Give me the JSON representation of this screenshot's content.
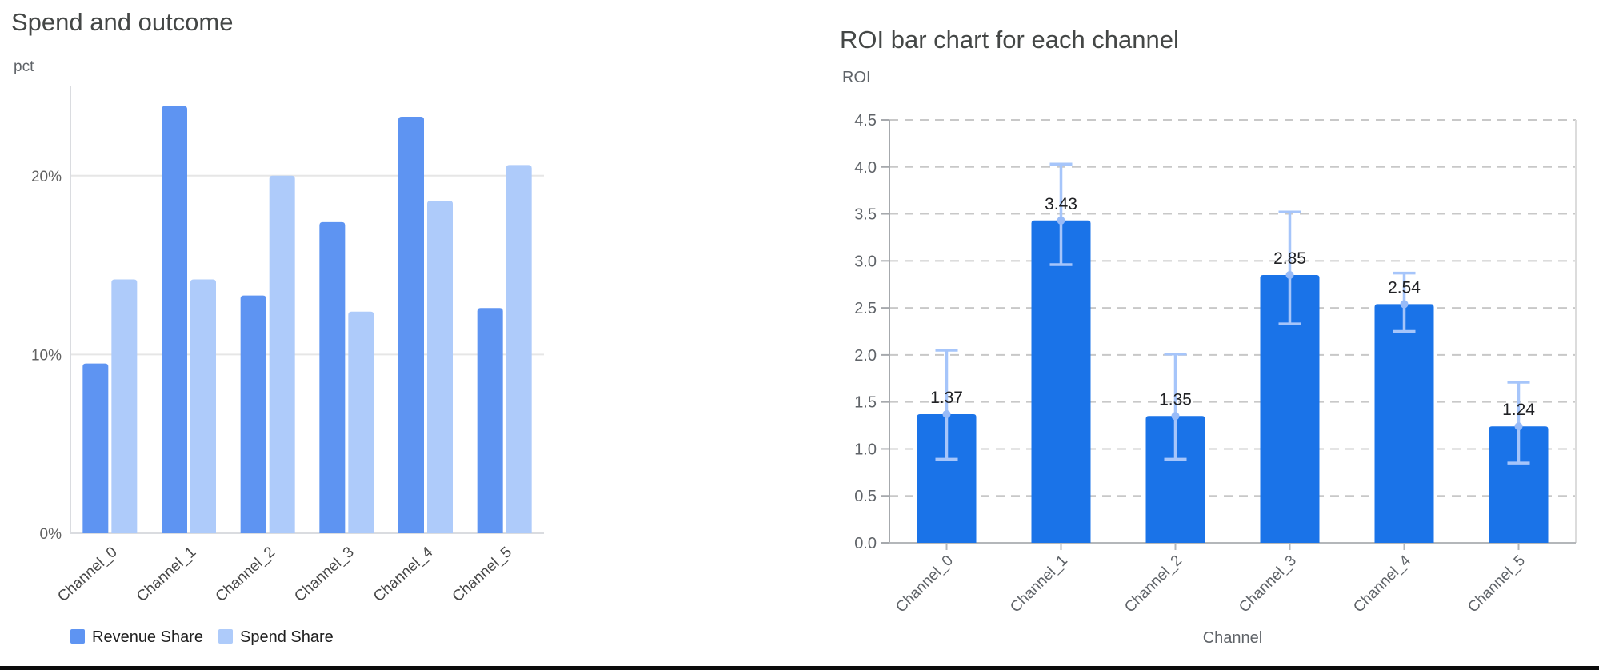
{
  "page": {
    "background": "#ffffff",
    "bottom_rule_color": "#0b0b0b"
  },
  "chart_data": [
    {
      "type": "bar",
      "title": "Spend and outcome",
      "ylabel": "pct",
      "xlabel": "",
      "categories": [
        "Channel_0",
        "Channel_1",
        "Channel_2",
        "Channel_3",
        "Channel_4",
        "Channel_5"
      ],
      "series": [
        {
          "name": "Revenue Share",
          "color": "#5e94f2",
          "values": [
            9.5,
            23.9,
            13.3,
            17.4,
            23.3,
            12.6
          ]
        },
        {
          "name": "Spend Share",
          "color": "#aecbfa",
          "values": [
            14.2,
            14.2,
            20.0,
            12.4,
            18.6,
            20.6
          ]
        }
      ],
      "units": "percent of total (each series sums to 100%)",
      "y_ticks": [
        "0%",
        "10%",
        "20%"
      ],
      "y_tick_values": [
        0,
        10,
        20
      ],
      "ylim": [
        0,
        25
      ],
      "grid": "horizontal solid, light gray",
      "legend_position": "bottom-left",
      "colors": {
        "grid": "#e6e6e6",
        "axis": "#dadce0",
        "title_text": "#444746",
        "tick_text": "#616161",
        "category_text": "#474747",
        "legend_text": "#1f1f1f"
      }
    },
    {
      "type": "bar",
      "title": "ROI bar chart for each channel",
      "ylabel": "ROI",
      "xlabel": "Channel",
      "categories": [
        "Channel_0",
        "Channel_1",
        "Channel_2",
        "Channel_3",
        "Channel_4",
        "Channel_5"
      ],
      "series": [
        {
          "name": "ROI",
          "color": "#1a73e8",
          "values": [
            1.37,
            3.43,
            1.35,
            2.85,
            2.54,
            1.24
          ]
        }
      ],
      "value_labels": [
        "1.37",
        "3.43",
        "1.35",
        "2.85",
        "2.54",
        "1.24"
      ],
      "error_bars": {
        "color": "#a6c5fa",
        "marker_color": "#98bbf8",
        "low": [
          0.89,
          2.96,
          0.89,
          2.33,
          2.25,
          0.85
        ],
        "high": [
          2.05,
          4.03,
          2.01,
          3.52,
          2.87,
          1.71
        ]
      },
      "y_ticks": [
        "0.0",
        "0.5",
        "1.0",
        "1.5",
        "2.0",
        "2.5",
        "3.0",
        "3.5",
        "4.0",
        "4.5"
      ],
      "y_tick_values": [
        0,
        0.5,
        1,
        1.5,
        2,
        2.5,
        3,
        3.5,
        4,
        4.5
      ],
      "ylim": [
        0,
        4.5
      ],
      "grid": "horizontal dashed, gray",
      "legend_position": "none",
      "colors": {
        "grid": "#c8c8c8",
        "y_axis": "#a6a9ad",
        "x_axis": "#b4b7ba",
        "plot_right_border": "#dcdcdc",
        "title_text": "#444746",
        "tick_text": "#5f6368",
        "category_text": "#5f6368",
        "value_label_text": "#202124",
        "axis_title_text": "#5f6368"
      }
    }
  ]
}
